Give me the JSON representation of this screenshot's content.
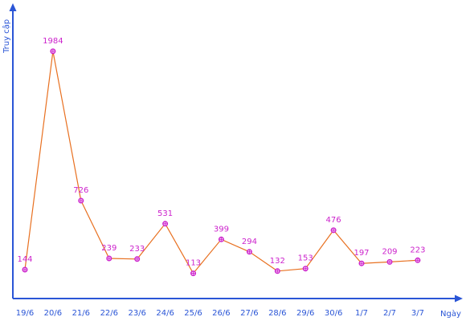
{
  "chart_data": {
    "type": "line",
    "xlabel": "Ngày",
    "ylabel": "Truy cập",
    "categories": [
      "19/6",
      "20/6",
      "21/6",
      "22/6",
      "23/6",
      "24/6",
      "25/6",
      "26/6",
      "27/6",
      "28/6",
      "29/6",
      "30/6",
      "1/7",
      "2/7",
      "3/7"
    ],
    "values": [
      144,
      1984,
      726,
      239,
      233,
      531,
      113,
      399,
      294,
      132,
      153,
      476,
      197,
      209,
      223
    ],
    "ylim": [
      0,
      2100
    ],
    "grid": false,
    "data_labels": true,
    "colors": {
      "axis": "#2a55d6",
      "line": "#e87020",
      "marker": "#cc22cc",
      "labels": "#cc22cc"
    }
  }
}
